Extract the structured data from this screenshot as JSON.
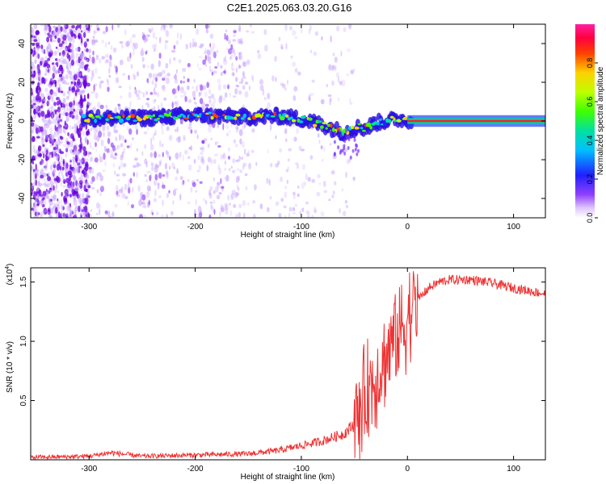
{
  "title": "C2E1.2025.063.03.20.G16",
  "chart_data": [
    {
      "type": "heatmap",
      "xlabel": "Height of straight line (km)",
      "ylabel": "Frequency (Hz)",
      "xlim": [
        -355,
        130
      ],
      "ylim": [
        -50,
        50
      ],
      "x_ticks": [
        -300,
        -200,
        -100,
        0,
        100
      ],
      "y_ticks": [
        -40,
        -20,
        0,
        20,
        40
      ],
      "colorbar": {
        "label": "Normalized spectral amplitude",
        "range": [
          0,
          1
        ],
        "ticks": [
          "0.0",
          "0.2",
          "0.4",
          "0.6",
          "0.8"
        ]
      },
      "ridge": {
        "description_points_x": [
          -305,
          -250,
          -200,
          -150,
          -120,
          -100,
          -80,
          -60,
          -45,
          -40,
          -30,
          -20,
          -10,
          0,
          130
        ],
        "description_points_y": [
          1.5,
          1.5,
          3,
          2,
          2.5,
          1,
          -2,
          -6,
          -3,
          -4,
          -1,
          0,
          1,
          0.5,
          0
        ]
      }
    },
    {
      "type": "line",
      "xlabel": "Height of straight line (km)",
      "ylabel": "SNR (10 * v/v)",
      "multiplier": "(x10",
      "multiplier_exp": "4",
      "multiplier_close": ")",
      "xlim": [
        -355,
        130
      ],
      "ylim": [
        0,
        1.62
      ],
      "x_ticks": [
        -300,
        -200,
        -100,
        0,
        100
      ],
      "y_ticks": [
        "0.5",
        "1.0",
        "1.5"
      ],
      "color": "#ee3333",
      "series": [
        {
          "x": [
            -355,
            -300,
            -280,
            -250,
            -200,
            -150,
            -120,
            -100,
            -80,
            -60,
            -50,
            -45,
            -40,
            -30,
            -20,
            -15,
            -10,
            -5,
            0,
            10,
            20,
            30,
            40,
            60,
            80,
            100,
            130
          ],
          "y": [
            0.02,
            0.03,
            0.06,
            0.03,
            0.04,
            0.05,
            0.08,
            0.12,
            0.16,
            0.22,
            0.3,
            0.4,
            0.55,
            0.7,
            0.85,
            1.0,
            1.05,
            1.1,
            1.2,
            1.35,
            1.45,
            1.5,
            1.52,
            1.52,
            1.49,
            1.45,
            1.4
          ]
        }
      ]
    }
  ]
}
